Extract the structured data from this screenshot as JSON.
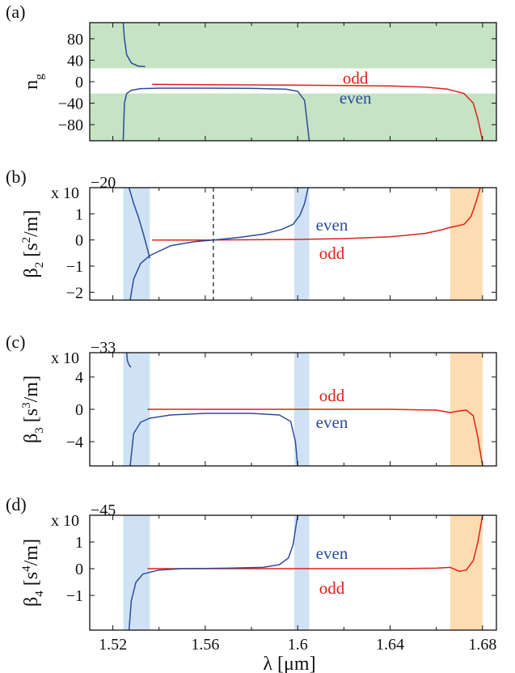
{
  "figure": {
    "xlabel": "λ [μm]",
    "x_ticks": [
      1.52,
      1.56,
      1.6,
      1.64,
      1.68
    ],
    "x_tick_labels": [
      "1.52",
      "1.56",
      "1.6",
      "1.64",
      "1.68"
    ],
    "colors": {
      "even": "#2b4c9b",
      "odd": "#e0201b",
      "green_band": "#c6e3c3",
      "blue_band": "#cfe2f5",
      "orange_band": "#fcdcb0"
    }
  },
  "chart_data": [
    {
      "panel": "(a)",
      "type": "line",
      "ylabel_main": "n",
      "ylabel_sub": "g",
      "xlim": [
        1.51,
        1.686
      ],
      "ylim": [
        -110,
        110
      ],
      "yticks": [
        80,
        40,
        0,
        -40,
        -80
      ],
      "ytick_labels": [
        "80",
        "40",
        "0",
        "−40",
        "−80"
      ],
      "bands_y": [
        {
          "from": 25,
          "to": 110,
          "color": "green"
        },
        {
          "from": -110,
          "to": -22,
          "color": "green"
        }
      ],
      "series": [
        {
          "name": "odd",
          "color": "#e0201b",
          "x": [
            1.537,
            1.56,
            1.6,
            1.64,
            1.655,
            1.665,
            1.672,
            1.676,
            1.678,
            1.68
          ],
          "y": [
            -5,
            -5.5,
            -6.5,
            -8,
            -10,
            -14,
            -22,
            -40,
            -70,
            -110
          ]
        },
        {
          "name": "even",
          "color": "#2b4c9b",
          "x": [
            1.5245,
            1.525,
            1.526,
            1.528,
            1.532,
            1.54,
            1.56,
            1.58,
            1.595,
            1.6,
            1.603,
            1.605
          ],
          "y": [
            -110,
            -40,
            -22,
            -16,
            -13,
            -12,
            -12,
            -12.5,
            -14,
            -18,
            -35,
            -110
          ]
        },
        {
          "name": "",
          "color": "#2b4c9b",
          "x": [
            1.5245,
            1.525,
            1.526,
            1.528,
            1.531,
            1.534
          ],
          "y": [
            110,
            80,
            50,
            35,
            29,
            28
          ]
        }
      ],
      "annotations": [
        {
          "text": "odd",
          "series": "odd",
          "x": 1.625,
          "y": 7
        },
        {
          "text": "even",
          "series": "even",
          "x": 1.625,
          "y": -30
        }
      ]
    },
    {
      "panel": "(b)",
      "type": "line",
      "ylabel_main": "β",
      "ylabel_sub": "2",
      "ylabel_unit_pre": " [s",
      "ylabel_unit_sup": "2",
      "ylabel_unit_post": "/m]",
      "scale_text": "x 10",
      "scale_exp": "−20",
      "xlim": [
        1.51,
        1.686
      ],
      "ylim": [
        -2.3,
        2.0
      ],
      "yticks": [
        1,
        0,
        -1,
        -2
      ],
      "ytick_labels": [
        "1",
        "0",
        "−1",
        "−2"
      ],
      "bands_x": [
        {
          "from": 1.5245,
          "to": 1.536,
          "color": "blue"
        },
        {
          "from": 1.5985,
          "to": 1.605,
          "color": "blue"
        },
        {
          "from": 1.666,
          "to": 1.68,
          "color": "orange"
        }
      ],
      "vline_x": 1.5635,
      "series": [
        {
          "name": "odd",
          "color": "#e0201b",
          "x": [
            1.537,
            1.56,
            1.6,
            1.62,
            1.64,
            1.655,
            1.662,
            1.666,
            1.672,
            1.675,
            1.677,
            1.679
          ],
          "y": [
            0,
            0,
            0.02,
            0.05,
            0.12,
            0.25,
            0.38,
            0.48,
            0.6,
            0.9,
            1.4,
            2.0
          ]
        },
        {
          "name": "even",
          "color": "#2b4c9b",
          "x": [
            1.5275,
            1.529,
            1.532,
            1.536,
            1.545,
            1.555,
            1.5635,
            1.575,
            1.585,
            1.593,
            1.598,
            1.601,
            1.603,
            1.6045
          ],
          "y": [
            -2.3,
            -1.5,
            -0.9,
            -0.6,
            -0.22,
            -0.07,
            0,
            0.1,
            0.22,
            0.4,
            0.6,
            0.95,
            1.4,
            2.0
          ]
        },
        {
          "name": "",
          "color": "#2b4c9b",
          "x": [
            1.527,
            1.529,
            1.531,
            1.533,
            1.535,
            1.536
          ],
          "y": [
            2.0,
            1.4,
            0.9,
            0.3,
            -0.35,
            -0.7
          ]
        }
      ],
      "annotations": [
        {
          "text": "even",
          "series": "even",
          "x": 1.6148,
          "y": 0.57
        },
        {
          "text": "odd",
          "series": "odd",
          "x": 1.6148,
          "y": -0.5
        }
      ]
    },
    {
      "panel": "(c)",
      "type": "line",
      "ylabel_main": "β",
      "ylabel_sub": "3",
      "ylabel_unit_pre": " [s",
      "ylabel_unit_sup": "3",
      "ylabel_unit_post": "/m]",
      "scale_text": "x 10",
      "scale_exp": "−33",
      "xlim": [
        1.51,
        1.686
      ],
      "ylim": [
        -7,
        7
      ],
      "yticks": [
        4,
        0,
        -4
      ],
      "ytick_labels": [
        "4",
        "0",
        "−4"
      ],
      "bands_x": [
        {
          "from": 1.5245,
          "to": 1.536,
          "color": "blue"
        },
        {
          "from": 1.5985,
          "to": 1.605,
          "color": "blue"
        },
        {
          "from": 1.666,
          "to": 1.68,
          "color": "orange"
        }
      ],
      "series": [
        {
          "name": "odd",
          "color": "#e0201b",
          "x": [
            1.535,
            1.56,
            1.6,
            1.64,
            1.66,
            1.666,
            1.67,
            1.673,
            1.676,
            1.678,
            1.68
          ],
          "y": [
            0,
            0,
            0,
            0,
            -0.1,
            -0.4,
            -0.2,
            -0.1,
            -0.8,
            -3.5,
            -7
          ]
        },
        {
          "name": "even",
          "color": "#2b4c9b",
          "x": [
            1.5275,
            1.529,
            1.532,
            1.536,
            1.545,
            1.56,
            1.58,
            1.592,
            1.597,
            1.599,
            1.6
          ],
          "y": [
            -7,
            -3,
            -1.6,
            -1.1,
            -0.7,
            -0.5,
            -0.5,
            -0.7,
            -1.5,
            -4,
            -7
          ]
        },
        {
          "name": "",
          "color": "#2b4c9b",
          "x": [
            1.526,
            1.5263,
            1.527,
            1.5278
          ],
          "y": [
            7,
            6,
            5.5,
            5.2
          ]
        }
      ],
      "annotations": [
        {
          "text": "odd",
          "series": "odd",
          "x": 1.6148,
          "y": 1.7
        },
        {
          "text": "even",
          "series": "even",
          "x": 1.6148,
          "y": -1.6
        }
      ]
    },
    {
      "panel": "(d)",
      "type": "line",
      "ylabel_main": "β",
      "ylabel_sub": "4",
      "ylabel_unit_pre": " [s",
      "ylabel_unit_sup": "4",
      "ylabel_unit_post": "/m]",
      "scale_text": "x 10",
      "scale_exp": "−45",
      "xlim": [
        1.51,
        1.686
      ],
      "ylim": [
        -2.3,
        2.0
      ],
      "yticks": [
        1,
        0,
        -1
      ],
      "ytick_labels": [
        "1",
        "0",
        "−1"
      ],
      "bands_x": [
        {
          "from": 1.5245,
          "to": 1.536,
          "color": "blue"
        },
        {
          "from": 1.5985,
          "to": 1.605,
          "color": "blue"
        },
        {
          "from": 1.666,
          "to": 1.68,
          "color": "orange"
        }
      ],
      "series": [
        {
          "name": "odd",
          "color": "#e0201b",
          "x": [
            1.535,
            1.56,
            1.6,
            1.64,
            1.66,
            1.666,
            1.67,
            1.673,
            1.676,
            1.678,
            1.68
          ],
          "y": [
            0,
            0,
            0,
            0,
            0.02,
            0.05,
            -0.1,
            -0.05,
            0.3,
            1.0,
            2.0
          ]
        },
        {
          "name": "even",
          "color": "#2b4c9b",
          "x": [
            1.527,
            1.528,
            1.53,
            1.533,
            1.54,
            1.55,
            1.57,
            1.585,
            1.592,
            1.596,
            1.598,
            1.6
          ],
          "y": [
            -2.3,
            -1.2,
            -0.5,
            -0.2,
            -0.05,
            0,
            0.02,
            0.05,
            0.15,
            0.4,
            0.9,
            2.0
          ]
        }
      ],
      "annotations": [
        {
          "text": "even",
          "series": "even",
          "x": 1.6148,
          "y": 0.57
        },
        {
          "text": "odd",
          "series": "odd",
          "x": 1.6148,
          "y": -0.72
        }
      ]
    }
  ]
}
